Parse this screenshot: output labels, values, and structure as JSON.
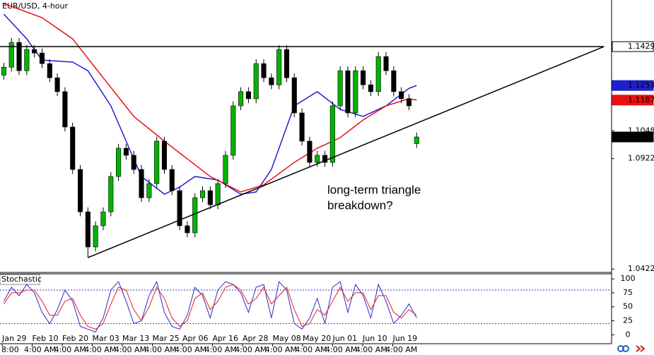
{
  "chart_data": [
    {
      "type": "candlestick",
      "title": "EUR/USD, 4-hour",
      "open": [
        1.13,
        1.1336,
        1.1448,
        1.132,
        1.1416,
        1.14,
        1.1352,
        1.1288,
        1.1225,
        1.1065,
        1.0873,
        1.0681,
        1.0522,
        1.0618,
        1.0681,
        1.0841,
        1.0969,
        1.0937,
        1.0873,
        1.0745,
        1.0809,
        1.1001,
        1.0873,
        1.0777,
        1.0618,
        1.0586,
        1.0745,
        1.0777,
        1.0713,
        1.0809,
        1.0937,
        1.1161,
        1.1225,
        1.1193,
        1.1352,
        1.1288,
        1.1256,
        1.1416,
        1.1288,
        1.1129,
        1.1001,
        1.0905,
        1.0937,
        1.0905,
        1.1161,
        1.132,
        1.1129,
        1.132,
        1.1256,
        1.1225,
        1.1384,
        1.132,
        1.1225,
        1.1193,
        1.099
      ],
      "high": [
        1.1356,
        1.1468,
        1.1468,
        1.1436,
        1.1436,
        1.142,
        1.1372,
        1.1308,
        1.1245,
        1.1085,
        1.0893,
        1.0701,
        1.0638,
        1.0701,
        1.0861,
        1.0989,
        1.0989,
        1.0957,
        1.0893,
        1.0829,
        1.1021,
        1.1021,
        1.0893,
        1.0797,
        1.0638,
        1.0765,
        1.0797,
        1.0797,
        1.0829,
        1.0957,
        1.1181,
        1.1245,
        1.1245,
        1.1372,
        1.1372,
        1.1308,
        1.1436,
        1.1436,
        1.1308,
        1.1149,
        1.1021,
        1.0957,
        1.0957,
        1.1181,
        1.134,
        1.134,
        1.134,
        1.134,
        1.1276,
        1.1404,
        1.1404,
        1.134,
        1.1245,
        1.1213,
        1.104
      ],
      "low": [
        1.128,
        1.1316,
        1.13,
        1.13,
        1.138,
        1.1332,
        1.1268,
        1.1205,
        1.1045,
        1.0853,
        1.0661,
        1.0474,
        1.0502,
        1.0598,
        1.0661,
        1.0821,
        1.0917,
        1.0853,
        1.0725,
        1.0725,
        1.0789,
        1.0853,
        1.0757,
        1.0598,
        1.0566,
        1.0566,
        1.0725,
        1.0693,
        1.0693,
        1.0789,
        1.0917,
        1.1141,
        1.1173,
        1.1173,
        1.1268,
        1.1236,
        1.1236,
        1.1268,
        1.1109,
        1.0981,
        1.0885,
        1.0885,
        1.0885,
        1.0885,
        1.1141,
        1.1109,
        1.1109,
        1.1236,
        1.1205,
        1.1205,
        1.13,
        1.1205,
        1.1173,
        1.1141,
        1.097
      ],
      "close": [
        1.1336,
        1.1448,
        1.132,
        1.1416,
        1.14,
        1.1352,
        1.1288,
        1.1225,
        1.1065,
        1.0873,
        1.0681,
        1.0522,
        1.0618,
        1.0681,
        1.0841,
        1.0969,
        1.0937,
        1.0873,
        1.0745,
        1.0809,
        1.1001,
        1.0873,
        1.0777,
        1.0618,
        1.0586,
        1.0745,
        1.0777,
        1.0713,
        1.0809,
        1.0937,
        1.1161,
        1.1225,
        1.1193,
        1.1352,
        1.1288,
        1.1256,
        1.1416,
        1.1288,
        1.1129,
        1.1001,
        1.0905,
        1.0937,
        1.0905,
        1.1161,
        1.132,
        1.1129,
        1.132,
        1.1256,
        1.1225,
        1.1384,
        1.132,
        1.1225,
        1.1193,
        1.1161,
        1.102
      ],
      "up_color": "#00b400",
      "down_color": "#000000",
      "moving_averages": [
        {
          "color": "#1f1fd0",
          "x": [
            0,
            3,
            5,
            9,
            11,
            14,
            16,
            18,
            21,
            23,
            25,
            28,
            31,
            33,
            35,
            38,
            41,
            44,
            47,
            50,
            53,
            54
          ],
          "values": [
            1.1576,
            1.1464,
            1.1368,
            1.1359,
            1.132,
            1.1161,
            1.1001,
            1.0841,
            1.0761,
            1.0793,
            1.0841,
            1.0825,
            1.0761,
            1.0771,
            1.0873,
            1.1161,
            1.1225,
            1.1145,
            1.1113,
            1.1161,
            1.124,
            1.1253
          ]
        },
        {
          "color": "#e81010",
          "x": [
            0,
            5,
            9,
            13,
            17,
            21,
            24,
            27,
            31,
            34,
            38,
            41,
            44,
            47,
            50,
            53,
            54
          ],
          "values": [
            1.1624,
            1.156,
            1.1464,
            1.1288,
            1.1113,
            1.1001,
            1.0921,
            1.0841,
            1.0771,
            1.0803,
            1.0905,
            1.0969,
            1.1017,
            1.1097,
            1.1161,
            1.1193,
            1.1187
          ]
        }
      ],
      "trendlines": [
        {
          "color": "#000000",
          "points": [
            [
              -0.5,
              1.1429
            ],
            [
              78.5,
              1.1429
            ]
          ]
        },
        {
          "color": "#000000",
          "points": [
            [
              11,
              1.0474
            ],
            [
              78.5,
              1.1429
            ]
          ]
        }
      ],
      "annotation": [
        "long-term triangle",
        "breakdown?"
      ],
      "xlim": [
        -0.5,
        79.5
      ],
      "ylim": [
        1.041,
        1.164
      ],
      "yticks": [
        1.0422,
        1.0922,
        1.1048
      ]
    },
    {
      "type": "line",
      "title": "Stochastic",
      "series": [
        {
          "color": "#2a2ac8",
          "values": [
            60,
            85,
            70,
            90,
            75,
            40,
            20,
            45,
            80,
            60,
            15,
            10,
            5,
            30,
            80,
            95,
            60,
            20,
            25,
            70,
            95,
            40,
            15,
            10,
            35,
            85,
            70,
            30,
            80,
            95,
            90,
            75,
            40,
            85,
            90,
            30,
            95,
            80,
            20,
            10,
            30,
            65,
            20,
            85,
            95,
            40,
            90,
            70,
            30,
            90,
            60,
            20,
            35,
            55,
            30
          ]
        },
        {
          "color": "#e02020",
          "values": [
            55,
            75,
            75,
            80,
            80,
            60,
            35,
            35,
            60,
            65,
            35,
            15,
            10,
            20,
            55,
            85,
            80,
            45,
            25,
            50,
            85,
            65,
            30,
            15,
            25,
            65,
            75,
            45,
            60,
            85,
            90,
            80,
            55,
            65,
            85,
            55,
            70,
            85,
            45,
            15,
            20,
            45,
            35,
            60,
            85,
            60,
            75,
            75,
            45,
            70,
            70,
            40,
            30,
            45,
            35
          ]
        }
      ],
      "levels": [
        {
          "value": 80,
          "color": "#3030c0"
        },
        {
          "value": 20,
          "color": "#e02020"
        }
      ],
      "xlim": [
        -0.5,
        79.5
      ],
      "ylim": [
        -16,
        109
      ],
      "yticks": [
        0,
        25,
        50,
        75,
        100
      ],
      "x_axis": {
        "dates": [
          "Jan 29",
          "Feb 10",
          "Feb 20",
          "Mar 03",
          "Mar 13",
          "Mar 25",
          "Apr 06",
          "Apr 16",
          "Apr 28",
          "May 08",
          "May 20",
          "Jun 01",
          "Jun 10",
          "Jun 19"
        ],
        "times": [
          "8:00",
          "4:00 AM",
          "4:00 AM",
          "4:00 AM",
          "4:00 AM",
          "4:00 AM",
          "4:00 AM",
          "4:00 AM",
          "4:00 AM",
          "4:00 AM",
          "4:00 AM",
          "4:00 AM",
          "4:00 AM",
          "4:00 AM"
        ]
      }
    }
  ]
}
